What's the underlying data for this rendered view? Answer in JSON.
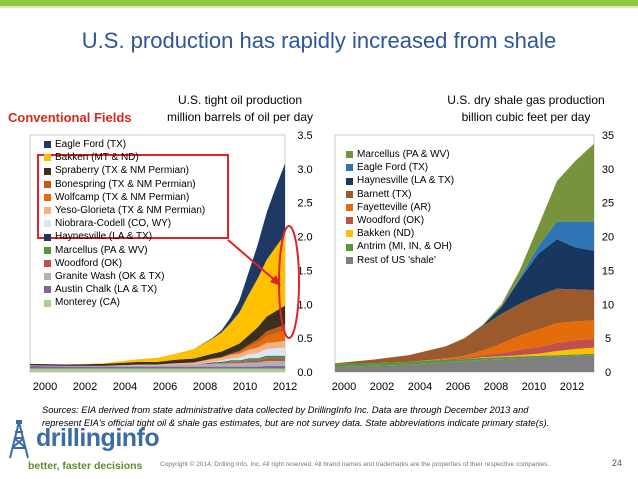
{
  "slide": {
    "title": "U.S. production has rapidly increased from shale",
    "conventional_label": "Conventional Fields",
    "sources_line1": "Sources: EIA derived from state administrative data collected by DrillingInfo Inc. Data are through December 2013 and",
    "sources_line2": "represent EIA's official tight oil & shale gas estimates, but are not survey data. State abbreviations indicate primary state(s).",
    "logo_text": "drillinginfo",
    "tagline": "better, faster decisions",
    "copyright": "Copyright © 2014, Drilling Info, Inc. All right reserved. All brand names and trademarks are the properties of their respective companies.",
    "page_number": "24",
    "accent_green": "#8dc63f",
    "title_color": "#2e5597",
    "highlight_red": "#e0232a"
  },
  "chart_data": [
    {
      "type": "area",
      "stacked": true,
      "title_line1": "U.S. tight oil production",
      "title_line2": "million barrels of oil per day",
      "x_ticks": [
        "2000",
        "2002",
        "2004",
        "2006",
        "2008",
        "2010",
        "2012"
      ],
      "xlim": [
        2000,
        2014
      ],
      "ylim": [
        0,
        3.5
      ],
      "y_ticks": [
        "0.0",
        "0.5",
        "1.0",
        "1.5",
        "2.0",
        "2.5",
        "3.0",
        "3.5"
      ],
      "y_axis_side": "right",
      "grid": false,
      "legend_position": "top-left",
      "x": [
        2000,
        2002,
        2004,
        2006,
        2007,
        2008,
        2009,
        2010,
        2010.5,
        2011,
        2011.5,
        2012,
        2012.5,
        2013,
        2013.5,
        2014
      ],
      "series": [
        {
          "name": "Monterey (CA)",
          "color": "#a8d08d",
          "values": [
            0.05,
            0.05,
            0.05,
            0.05,
            0.05,
            0.05,
            0.05,
            0.05,
            0.05,
            0.05,
            0.05,
            0.05,
            0.05,
            0.05,
            0.05,
            0.05
          ]
        },
        {
          "name": "Austin Chalk (LA & TX)",
          "color": "#8064a2",
          "values": [
            0.04,
            0.03,
            0.03,
            0.03,
            0.03,
            0.03,
            0.03,
            0.03,
            0.03,
            0.03,
            0.03,
            0.03,
            0.03,
            0.04,
            0.04,
            0.04
          ]
        },
        {
          "name": "Granite Wash (OK & TX)",
          "color": "#b0b0b0",
          "values": [
            0.01,
            0.01,
            0.01,
            0.02,
            0.02,
            0.03,
            0.03,
            0.04,
            0.04,
            0.05,
            0.05,
            0.06,
            0.06,
            0.07,
            0.07,
            0.07
          ]
        },
        {
          "name": "Woodford (OK)",
          "color": "#c0504d",
          "values": [
            0,
            0,
            0,
            0,
            0,
            0,
            0,
            0.01,
            0.01,
            0.02,
            0.02,
            0.03,
            0.03,
            0.04,
            0.04,
            0.04
          ]
        },
        {
          "name": "Marcellus (PA & WV)",
          "color": "#4f9a3a",
          "values": [
            0,
            0,
            0,
            0,
            0,
            0,
            0,
            0,
            0.01,
            0.01,
            0.01,
            0.02,
            0.02,
            0.03,
            0.03,
            0.03
          ]
        },
        {
          "name": "Haynesville (LA & TX)",
          "color": "#17375e",
          "values": [
            0,
            0,
            0,
            0,
            0,
            0,
            0,
            0.01,
            0.01,
            0.01,
            0.01,
            0.01,
            0.01,
            0.01,
            0.01,
            0.01
          ]
        },
        {
          "name": "Niobrara-Codell (CO, WY)",
          "color": "#dce6f2",
          "values": [
            0,
            0,
            0,
            0,
            0,
            0,
            0,
            0.01,
            0.02,
            0.03,
            0.04,
            0.06,
            0.08,
            0.1,
            0.11,
            0.12
          ]
        },
        {
          "name": "Yeso-Glorieta (TX & NM Permian)",
          "color": "#f4b183",
          "values": [
            0,
            0,
            0,
            0.01,
            0.01,
            0.02,
            0.03,
            0.04,
            0.04,
            0.05,
            0.06,
            0.07,
            0.08,
            0.09,
            0.09,
            0.1
          ]
        },
        {
          "name": "Wolfcamp (TX & NM Permian)",
          "color": "#e46c0a",
          "values": [
            0,
            0,
            0,
            0,
            0,
            0,
            0,
            0,
            0,
            0.01,
            0.02,
            0.04,
            0.07,
            0.1,
            0.13,
            0.15
          ]
        },
        {
          "name": "Bonespring (TX & NM Permian)",
          "color": "#c55a11",
          "values": [
            0,
            0,
            0,
            0,
            0,
            0,
            0,
            0.01,
            0.01,
            0.01,
            0.02,
            0.03,
            0.05,
            0.07,
            0.08,
            0.09
          ]
        },
        {
          "name": "Spraberry (TX & NM Permian)",
          "color": "#3b3020",
          "values": [
            0.02,
            0.02,
            0.03,
            0.04,
            0.04,
            0.05,
            0.06,
            0.07,
            0.08,
            0.09,
            0.11,
            0.14,
            0.18,
            0.22,
            0.25,
            0.28
          ]
        },
        {
          "name": "Bakken (MT & ND)",
          "color": "#ffc000",
          "values": [
            0,
            0,
            0.01,
            0.04,
            0.06,
            0.09,
            0.14,
            0.22,
            0.28,
            0.36,
            0.46,
            0.6,
            0.72,
            0.84,
            0.95,
            1.05
          ]
        },
        {
          "name": "Eagle Ford (TX)",
          "color": "#1f3864",
          "values": [
            0,
            0,
            0,
            0,
            0,
            0,
            0,
            0.01,
            0.03,
            0.08,
            0.18,
            0.33,
            0.5,
            0.7,
            0.88,
            1.05
          ]
        }
      ]
    },
    {
      "type": "area",
      "stacked": true,
      "title_line1": "U.S. dry shale gas production",
      "title_line2": "billion cubic feet per day",
      "x_ticks": [
        "2000",
        "2002",
        "2004",
        "2006",
        "2008",
        "2010",
        "2012"
      ],
      "xlim": [
        2000,
        2014
      ],
      "ylim": [
        0,
        35
      ],
      "y_ticks": [
        "0",
        "5",
        "10",
        "15",
        "20",
        "25",
        "30",
        "35"
      ],
      "y_axis_side": "right",
      "grid": false,
      "legend_position": "top-left",
      "x": [
        2000,
        2002,
        2004,
        2006,
        2007,
        2008,
        2009,
        2010,
        2011,
        2012,
        2013,
        2014
      ],
      "series": [
        {
          "name": "Rest of US 'shale'",
          "color": "#7f7f7f",
          "values": [
            0.8,
            0.9,
            1.1,
            1.4,
            1.6,
            1.8,
            1.9,
            2.0,
            2.2,
            2.3,
            2.4,
            2.5
          ]
        },
        {
          "name": "Antrim (MI, IN, & OH)",
          "color": "#4f9a3a",
          "values": [
            0.4,
            0.4,
            0.4,
            0.4,
            0.3,
            0.3,
            0.3,
            0.3,
            0.2,
            0.2,
            0.2,
            0.2
          ]
        },
        {
          "name": "Bakken (ND)",
          "color": "#ffc000",
          "values": [
            0,
            0,
            0,
            0,
            0,
            0.1,
            0.1,
            0.2,
            0.3,
            0.6,
            0.8,
            0.9
          ]
        },
        {
          "name": "Woodford (OK)",
          "color": "#c0504d",
          "values": [
            0,
            0,
            0,
            0.1,
            0.2,
            0.3,
            0.5,
            0.8,
            1.0,
            1.2,
            1.3,
            1.3
          ]
        },
        {
          "name": "Fayetteville (AR)",
          "color": "#e46c0a",
          "values": [
            0,
            0,
            0,
            0.1,
            0.3,
            0.7,
            1.4,
            2.1,
            2.6,
            2.9,
            2.8,
            2.7
          ]
        },
        {
          "name": "Barnett (TX)",
          "color": "#9c5a2c",
          "values": [
            0.1,
            0.5,
            1.0,
            1.8,
            2.6,
            3.6,
            4.4,
            4.7,
            5.0,
            5.1,
            4.7,
            4.5
          ]
        },
        {
          "name": "Haynesville (LA & TX)",
          "color": "#17375e",
          "values": [
            0,
            0,
            0,
            0,
            0,
            0.1,
            1.0,
            3.6,
            6.2,
            7.3,
            6.2,
            5.8
          ]
        },
        {
          "name": "Eagle Ford (TX)",
          "color": "#2e75b6",
          "values": [
            0,
            0,
            0,
            0,
            0,
            0,
            0,
            0.2,
            1.1,
            2.6,
            3.8,
            4.3
          ]
        },
        {
          "name": "Marcellus (PA & WV)",
          "color": "#77933c",
          "values": [
            0,
            0,
            0,
            0,
            0,
            0.1,
            0.4,
            1.2,
            3.0,
            6.0,
            9.0,
            11.5
          ]
        }
      ]
    }
  ]
}
